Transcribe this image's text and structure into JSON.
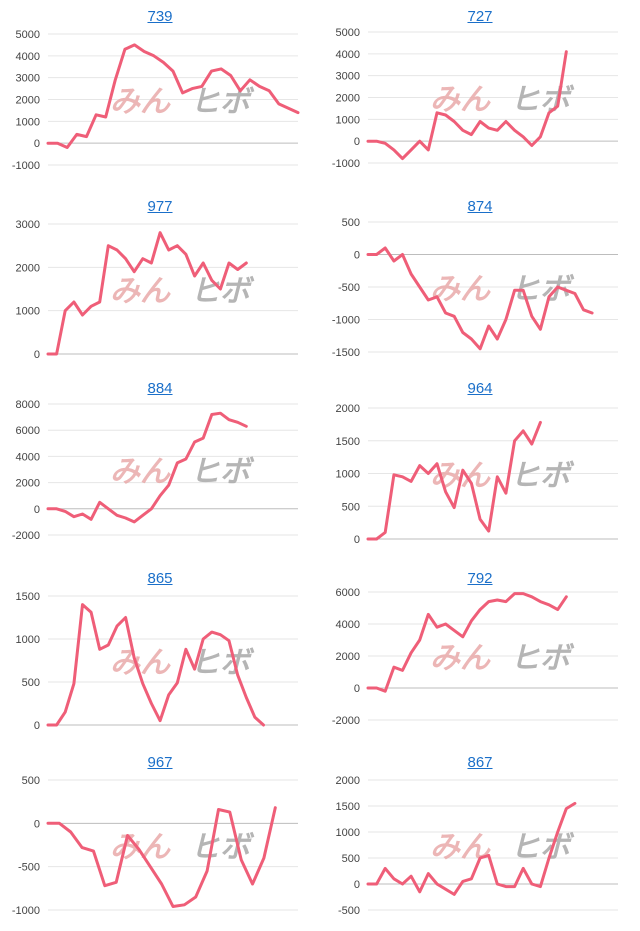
{
  "colors": {
    "line": "#ef5e78",
    "title_link": "#1a6fc9",
    "grid": "#e6e6e6",
    "watermark_pink": "#e9aaaa",
    "watermark_gray": "#a9a9a9"
  },
  "watermark": {
    "part1": "みん",
    "part2": "ヒボ"
  },
  "chart_data": [
    {
      "type": "line",
      "title": "739",
      "ylim": [
        -1000,
        5000
      ],
      "yticks": [
        -1000,
        0,
        1000,
        2000,
        3000,
        4000,
        5000
      ],
      "series": [
        {
          "values": [
            0,
            0,
            -200,
            400,
            300,
            1300,
            1200,
            2900,
            4300,
            4500,
            4200,
            4000,
            3700,
            3300,
            2300,
            2500,
            2600,
            3300,
            3400,
            3100,
            2400,
            2900,
            2600,
            2400,
            1800,
            1600,
            1400
          ]
        }
      ],
      "x_count": 27
    },
    {
      "type": "line",
      "title": "727",
      "ylim": [
        -1000,
        5000
      ],
      "yticks": [
        -1000,
        0,
        1000,
        2000,
        3000,
        4000,
        5000
      ],
      "series": [
        {
          "values": [
            0,
            0,
            -100,
            -400,
            -800,
            -400,
            0,
            -400,
            1300,
            1200,
            900,
            500,
            300,
            900,
            600,
            500,
            900,
            500,
            200,
            -200,
            200,
            1300,
            1600,
            4100
          ]
        }
      ],
      "x_count": 30
    },
    {
      "type": "line",
      "title": "977",
      "ylim": [
        0,
        3000
      ],
      "yticks": [
        0,
        1000,
        2000,
        3000
      ],
      "series": [
        {
          "values": [
            0,
            0,
            1000,
            1200,
            900,
            1100,
            1200,
            2500,
            2400,
            2200,
            1900,
            2200,
            2100,
            2800,
            2400,
            2500,
            2300,
            1800,
            2100,
            1700,
            1500,
            2100,
            1950,
            2100
          ]
        }
      ],
      "x_count": 30
    },
    {
      "type": "line",
      "title": "874",
      "ylim": [
        -1500,
        500
      ],
      "yticks": [
        -1500,
        -1000,
        -500,
        0,
        500
      ],
      "series": [
        {
          "values": [
            0,
            0,
            100,
            -100,
            0,
            -300,
            -500,
            -700,
            -650,
            -900,
            -950,
            -1200,
            -1300,
            -1450,
            -1100,
            -1300,
            -1000,
            -550,
            -550,
            -950,
            -1150,
            -650,
            -500,
            -550,
            -600,
            -850,
            -900
          ]
        }
      ],
      "x_count": 30
    },
    {
      "type": "line",
      "title": "884",
      "ylim": [
        -2000,
        8000
      ],
      "yticks": [
        -2000,
        0,
        2000,
        4000,
        6000,
        8000
      ],
      "series": [
        {
          "values": [
            0,
            0,
            -200,
            -600,
            -400,
            -800,
            500,
            0,
            -500,
            -700,
            -1000,
            -500,
            0,
            1000,
            1800,
            3500,
            3800,
            5100,
            5400,
            7200,
            7300,
            6800,
            6600,
            6300
          ]
        }
      ],
      "x_count": 30
    },
    {
      "type": "line",
      "title": "964",
      "ylim": [
        0,
        2000
      ],
      "yticks": [
        0,
        500,
        1000,
        1500,
        2000
      ],
      "series": [
        {
          "values": [
            0,
            0,
            100,
            980,
            950,
            880,
            1120,
            1000,
            1150,
            720,
            480,
            1050,
            850,
            300,
            120,
            950,
            700,
            1500,
            1650,
            1450,
            1780
          ]
        }
      ],
      "x_count": 30
    },
    {
      "type": "line",
      "title": "865",
      "ylim": [
        0,
        1500
      ],
      "yticks": [
        0,
        500,
        1000,
        1500
      ],
      "series": [
        {
          "values": [
            0,
            0,
            150,
            480,
            1400,
            1310,
            880,
            930,
            1150,
            1250,
            780,
            480,
            250,
            50,
            350,
            490,
            880,
            650,
            1000,
            1080,
            1050,
            980,
            580,
            320,
            90,
            0
          ]
        }
      ],
      "x_count": 30
    },
    {
      "type": "line",
      "title": "792",
      "ylim": [
        -2000,
        6000
      ],
      "yticks": [
        -2000,
        0,
        2000,
        4000,
        6000
      ],
      "series": [
        {
          "values": [
            0,
            0,
            -200,
            1300,
            1100,
            2200,
            3000,
            4600,
            3800,
            4000,
            3600,
            3200,
            4200,
            4900,
            5400,
            5500,
            5400,
            5900,
            5900,
            5700,
            5400,
            5200,
            4900,
            5700
          ]
        }
      ],
      "x_count": 30
    },
    {
      "type": "line",
      "title": "967",
      "ylim": [
        -1000,
        500
      ],
      "yticks": [
        -1000,
        -500,
        0,
        500
      ],
      "series": [
        {
          "values": [
            0,
            0,
            -100,
            -280,
            -320,
            -720,
            -680,
            -140,
            -300,
            -500,
            -700,
            -960,
            -940,
            -850,
            -550,
            160,
            130,
            -420,
            -700,
            -400,
            180
          ]
        }
      ],
      "x_count": 23
    },
    {
      "type": "line",
      "title": "867",
      "ylim": [
        -500,
        2000
      ],
      "yticks": [
        -500,
        0,
        500,
        1000,
        1500,
        2000
      ],
      "series": [
        {
          "values": [
            0,
            0,
            300,
            100,
            0,
            150,
            -150,
            200,
            0,
            -100,
            -200,
            50,
            100,
            500,
            550,
            0,
            -50,
            -50,
            300,
            0,
            -50,
            500,
            1000,
            1450,
            1550
          ]
        }
      ],
      "x_count": 30
    }
  ]
}
